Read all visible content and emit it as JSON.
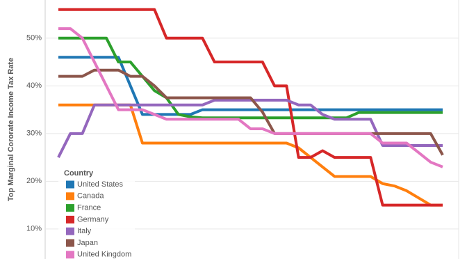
{
  "chart_data": {
    "type": "line",
    "y_label": "Top Marginal Cororate Income Tax Rate",
    "legend_title": "Country",
    "legend_position": "lower-left",
    "grid": true,
    "categories": [
      null,
      null,
      null,
      null,
      null,
      null,
      null,
      null,
      null,
      null,
      null,
      null,
      null,
      null,
      null,
      null,
      null,
      null,
      null,
      null,
      null,
      null,
      null,
      null,
      null,
      null,
      null,
      null,
      null,
      null,
      null,
      null,
      null
    ],
    "ylim": [
      3.7,
      58.0
    ],
    "yticks": [
      {
        "value": 10,
        "label": "10%"
      },
      {
        "value": 20,
        "label": "20%"
      },
      {
        "value": 30,
        "label": "30%"
      },
      {
        "value": 40,
        "label": "40%"
      },
      {
        "value": 50,
        "label": "50%"
      }
    ],
    "series": [
      {
        "name": "United States",
        "color": "#1f77b4",
        "values": [
          46,
          46,
          46,
          46,
          46,
          46,
          40,
          34,
          34,
          34,
          34,
          34,
          35,
          35,
          35,
          35,
          35,
          35,
          35,
          35,
          35,
          35,
          35,
          35,
          35,
          35,
          35,
          35,
          35,
          35,
          35,
          35,
          35
        ]
      },
      {
        "name": "Canada",
        "color": "#ff7f0e",
        "values": [
          36,
          36,
          36,
          36,
          36,
          36,
          36,
          28,
          28,
          28,
          28,
          28,
          28,
          28,
          28,
          28,
          28,
          28,
          28,
          28,
          27,
          25,
          23,
          21,
          21,
          21,
          21,
          19.5,
          19,
          18,
          16.5,
          15,
          15
        ]
      },
      {
        "name": "France",
        "color": "#2ca02c",
        "values": [
          50,
          50,
          50,
          50,
          50,
          45,
          45,
          42,
          39,
          37.5,
          34,
          33.5,
          33.3,
          33.3,
          33.3,
          33.3,
          33.3,
          33.3,
          33.3,
          33.3,
          33.3,
          33.3,
          33.3,
          33.3,
          33.3,
          34.4,
          34.4,
          34.4,
          34.4,
          34.4,
          34.4,
          34.4,
          34.4
        ]
      },
      {
        "name": "Germany",
        "color": "#d62728",
        "values": [
          56,
          56,
          56,
          56,
          56,
          56,
          56,
          56,
          56,
          50,
          50,
          50,
          50,
          45,
          45,
          45,
          45,
          45,
          40,
          40,
          25,
          25,
          26.4,
          25,
          25,
          25,
          25,
          15,
          15,
          15,
          15,
          15,
          15
        ]
      },
      {
        "name": "Italy",
        "color": "#9467bd",
        "values": [
          25,
          30,
          30,
          36,
          36,
          36,
          36,
          36,
          36,
          36,
          36,
          36,
          36,
          37,
          37,
          37,
          37,
          37,
          37,
          37,
          36,
          36,
          34,
          33,
          33,
          33,
          33,
          27.5,
          27.5,
          27.5,
          27.5,
          27.5,
          27.5
        ]
      },
      {
        "name": "Japan",
        "color": "#8c564b",
        "values": [
          42,
          42,
          42,
          43.3,
          43.3,
          43.3,
          42,
          42,
          40,
          37.5,
          37.5,
          37.5,
          37.5,
          37.5,
          37.5,
          37.5,
          37.5,
          34.5,
          30,
          30,
          30,
          30,
          30,
          30,
          30,
          30,
          30,
          30,
          30,
          30,
          30,
          30,
          25.5
        ]
      },
      {
        "name": "United Kingdom",
        "color": "#e377c2",
        "values": [
          52,
          52,
          50,
          45,
          40,
          35,
          35,
          35,
          34,
          33,
          33,
          33,
          33,
          33,
          33,
          33,
          31,
          31,
          30,
          30,
          30,
          30,
          30,
          30,
          30,
          30,
          30,
          28,
          28,
          28,
          26,
          24,
          23
        ]
      }
    ]
  }
}
